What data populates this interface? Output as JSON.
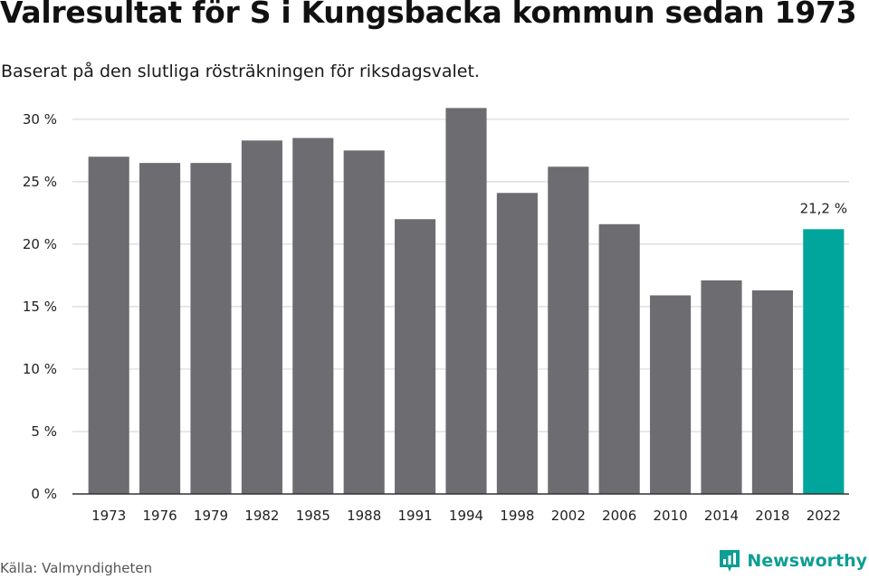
{
  "header": {
    "title": "Valresultat för S i Kungsbacka kommun sedan 1973",
    "subtitle": "Baserat på den slutliga rösträkningen för riksdagsvalet."
  },
  "footer": {
    "source": "Källa: Valmyndigheten",
    "brand": "Newsworthy"
  },
  "colors": {
    "bar": "#6d6c71",
    "highlight": "#00a59b",
    "grid": "#d9d9d9",
    "axis": "#333333",
    "brand": "#0e9e93"
  },
  "chart_data": {
    "type": "bar",
    "title": "Valresultat för S i Kungsbacka kommun sedan 1973",
    "subtitle": "Baserat på den slutliga rösträkningen för riksdagsvalet.",
    "xlabel": "",
    "ylabel": "",
    "categories": [
      "1973",
      "1976",
      "1979",
      "1982",
      "1985",
      "1988",
      "1991",
      "1994",
      "1998",
      "2002",
      "2006",
      "2010",
      "2014",
      "2018",
      "2022"
    ],
    "values": [
      27.0,
      26.5,
      26.5,
      28.3,
      28.5,
      27.5,
      22.0,
      30.9,
      24.1,
      26.2,
      21.6,
      15.9,
      17.1,
      16.3,
      21.2
    ],
    "ylim": [
      0,
      31
    ],
    "yticks": [
      0,
      5,
      10,
      15,
      20,
      25,
      30
    ],
    "ytick_labels": [
      "0 %",
      "5 %",
      "10 %",
      "15 %",
      "20 %",
      "25 %",
      "30 %"
    ],
    "grid": true,
    "highlight_index": 14,
    "annotations": [
      {
        "index": 14,
        "text": "21,2 %"
      }
    ]
  }
}
